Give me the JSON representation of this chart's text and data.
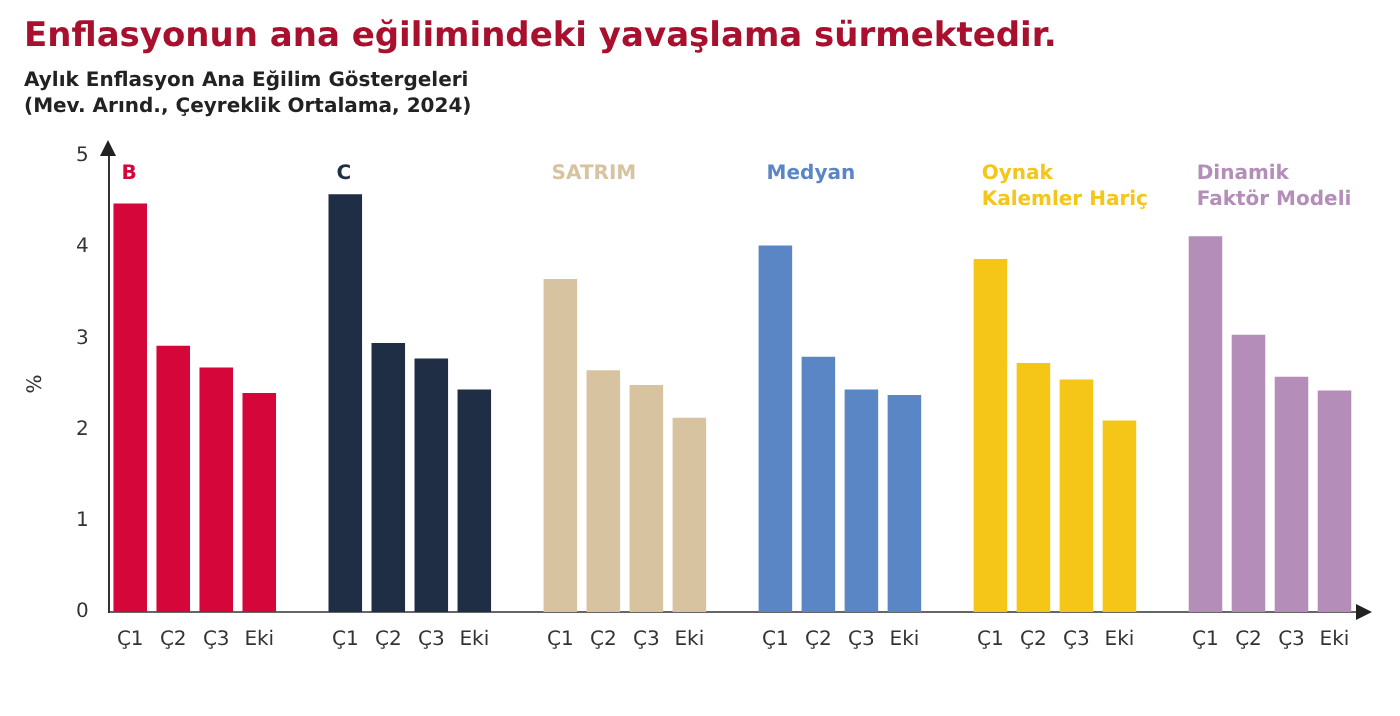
{
  "chart_data": {
    "type": "bar",
    "title": "Enflasyonun ana eğilimindeki yavaşlama sürmektedir.",
    "subtitle": "Aylık Enflasyon Ana Eğilim Göstergeleri\n(Mev. Arınd., Çeyreklik Ortalama, 2024)",
    "ylabel": "%",
    "categories": [
      "Ç1",
      "Ç2",
      "Ç3",
      "Eki",
      null,
      "Ç1",
      "Ç2",
      "Ç3",
      "Eki",
      null,
      "Ç1",
      "Ç2",
      "Ç3",
      "Eki",
      null,
      "Ç1",
      "Ç2",
      "Ç3",
      "Eki",
      null,
      "Ç1",
      "Ç2",
      "Ç3",
      "Eki",
      null,
      "Ç1",
      "Ç2",
      "Ç3",
      "Eki"
    ],
    "series": [
      {
        "name": "B",
        "color": "#d4063a",
        "values": [
          4.48,
          2.92,
          2.68,
          2.4,
          null,
          null,
          null,
          null,
          null,
          null,
          null,
          null,
          null,
          null,
          null,
          null,
          null,
          null,
          null,
          null,
          null,
          null,
          null,
          null,
          null,
          null,
          null,
          null,
          null
        ]
      },
      {
        "name": "C",
        "color": "#1f2d45",
        "values": [
          null,
          null,
          null,
          null,
          null,
          4.58,
          2.95,
          2.78,
          2.44,
          null,
          null,
          null,
          null,
          null,
          null,
          null,
          null,
          null,
          null,
          null,
          null,
          null,
          null,
          null,
          null,
          null,
          null,
          null,
          null
        ]
      },
      {
        "name": "SATRIM",
        "color": "#d8c3a0",
        "values": [
          null,
          null,
          null,
          null,
          null,
          null,
          null,
          null,
          null,
          null,
          3.65,
          2.65,
          2.49,
          2.13,
          null,
          null,
          null,
          null,
          null,
          null,
          null,
          null,
          null,
          null,
          null,
          null,
          null,
          null,
          null
        ]
      },
      {
        "name": "Medyan",
        "color": "#5b86c5",
        "values": [
          null,
          null,
          null,
          null,
          null,
          null,
          null,
          null,
          null,
          null,
          null,
          null,
          null,
          null,
          null,
          4.02,
          2.8,
          2.44,
          2.38,
          null,
          null,
          null,
          null,
          null,
          null,
          null,
          null,
          null,
          null
        ]
      },
      {
        "name": "Oynak Kalemler Hariç",
        "color": "#f5c518",
        "values": [
          null,
          null,
          null,
          null,
          null,
          null,
          null,
          null,
          null,
          null,
          null,
          null,
          null,
          null,
          null,
          null,
          null,
          null,
          null,
          null,
          3.87,
          2.73,
          2.55,
          2.1,
          null,
          null,
          null,
          null,
          null
        ]
      },
      {
        "name": "Dinamik Faktör Modeli",
        "color": "#b48db8",
        "values": [
          null,
          null,
          null,
          null,
          null,
          null,
          null,
          null,
          null,
          null,
          null,
          null,
          null,
          null,
          null,
          null,
          null,
          null,
          null,
          null,
          null,
          null,
          null,
          null,
          null,
          4.12,
          3.04,
          2.58,
          2.43
        ]
      }
    ],
    "ylim": [
      0,
      5
    ],
    "yticks": [
      0,
      1,
      2,
      3,
      4,
      5
    ],
    "grid": false,
    "legend": false
  }
}
